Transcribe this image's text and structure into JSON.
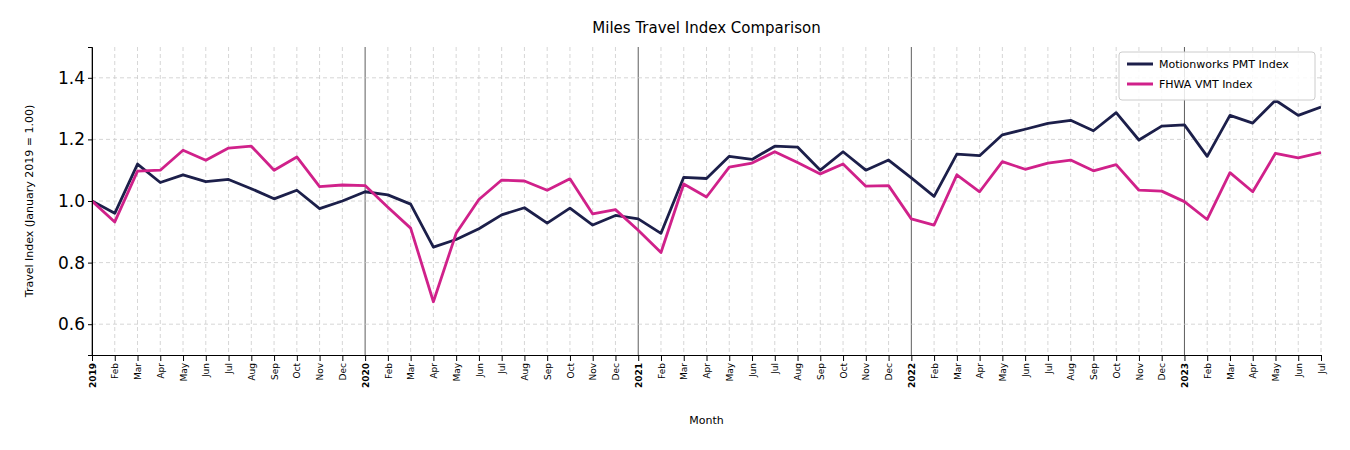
{
  "chart_data": {
    "type": "line",
    "title": "Miles Travel Index Comparison",
    "x_label": "Month",
    "y_label": "Travel Index (January 2019 = 1.00)",
    "categories": [
      "2019",
      "Feb",
      "Mar",
      "Apr",
      "May",
      "Jun",
      "Jul",
      "Aug",
      "Sep",
      "Oct",
      "Nov",
      "Dec",
      "2020",
      "Feb",
      "Mar",
      "Apr",
      "May",
      "Jun",
      "Jul",
      "Aug",
      "Sep",
      "Oct",
      "Nov",
      "Dec",
      "2021",
      "Feb",
      "Mar",
      "Apr",
      "May",
      "Jun",
      "Jul",
      "Aug",
      "Sep",
      "Oct",
      "Nov",
      "Dec",
      "2022",
      "Feb",
      "Mar",
      "Apr",
      "May",
      "Jun",
      "Jul",
      "Aug",
      "Sep",
      "Oct",
      "Nov",
      "Dec",
      "2023",
      "Feb",
      "Mar",
      "Apr",
      "May",
      "Jun",
      "Jul"
    ],
    "series": [
      {
        "name": "Motionworks PMT Index",
        "color": "#1c1f4a",
        "values": [
          1.0,
          0.96,
          1.12,
          1.06,
          1.085,
          1.063,
          1.07,
          1.04,
          1.007,
          1.035,
          0.975,
          1.0,
          1.03,
          1.02,
          0.99,
          0.85,
          0.875,
          0.91,
          0.955,
          0.978,
          0.928,
          0.977,
          0.922,
          0.953,
          0.942,
          0.895,
          1.077,
          1.073,
          1.145,
          1.135,
          1.178,
          1.175,
          1.1,
          1.16,
          1.1,
          1.133,
          1.075,
          1.015,
          1.152,
          1.147,
          1.215,
          1.233,
          1.252,
          1.262,
          1.228,
          1.287,
          1.198,
          1.243,
          1.247,
          1.145,
          1.278,
          1.253,
          1.327,
          1.278,
          1.305
        ]
      },
      {
        "name": "FHWA VMT Index",
        "color": "#d0218a",
        "values": [
          1.0,
          0.932,
          1.097,
          1.1,
          1.165,
          1.132,
          1.172,
          1.178,
          1.1,
          1.143,
          1.047,
          1.052,
          1.05,
          0.98,
          0.912,
          0.673,
          0.895,
          1.005,
          1.068,
          1.065,
          1.035,
          1.072,
          0.958,
          0.972,
          0.905,
          0.833,
          1.055,
          1.013,
          1.11,
          1.123,
          1.16,
          1.125,
          1.088,
          1.12,
          1.048,
          1.05,
          0.942,
          0.922,
          1.085,
          1.03,
          1.128,
          1.103,
          1.123,
          1.133,
          1.098,
          1.118,
          1.035,
          1.032,
          0.998,
          0.94,
          1.092,
          1.03,
          1.155,
          1.14,
          1.157
        ]
      }
    ],
    "ylim": [
      0.5,
      1.5
    ],
    "yticks": [
      0.6,
      0.8,
      {
        "value": 1.0,
        "label": "1.0"
      },
      1.2,
      1.4
    ],
    "grid": true,
    "legend": "upper right"
  }
}
